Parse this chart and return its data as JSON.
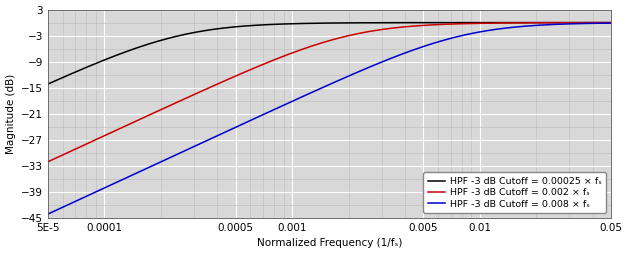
{
  "title": "",
  "xlabel": "Normalized Frequency (1/fₛ)",
  "ylabel": "Magnitude (dB)",
  "xlim": [
    5e-05,
    0.05
  ],
  "ylim": [
    -45,
    3
  ],
  "yticks": [
    3,
    -3,
    -9,
    -15,
    -21,
    -27,
    -33,
    -39,
    -45
  ],
  "xticks": [
    5e-05,
    0.0001,
    0.0005,
    0.001,
    0.005,
    0.01,
    0.05
  ],
  "xtick_labels": [
    "5E-5",
    "0.0001",
    "0.0005",
    "0.001",
    "0.005",
    "0.01",
    "0.05"
  ],
  "cutoffs": [
    0.00025,
    0.002,
    0.008
  ],
  "colors": [
    "#000000",
    "#cc0000",
    "#0000cc"
  ],
  "legend_labels": [
    "HPF -3 dB Cutoff = 0.00025 × fₛ",
    "HPF -3 dB Cutoff = 0.002 × fₛ",
    "HPF -3 dB Cutoff = 0.008 × fₛ"
  ],
  "plot_bg_color": "#d8d8d8",
  "fig_bg_color": "#ffffff",
  "major_grid_color": "#ffffff",
  "minor_grid_color": "#c0c0c0",
  "font_size": 7.5,
  "legend_font_size": 6.8,
  "line_width": 1.1,
  "tick_color": "#000000"
}
